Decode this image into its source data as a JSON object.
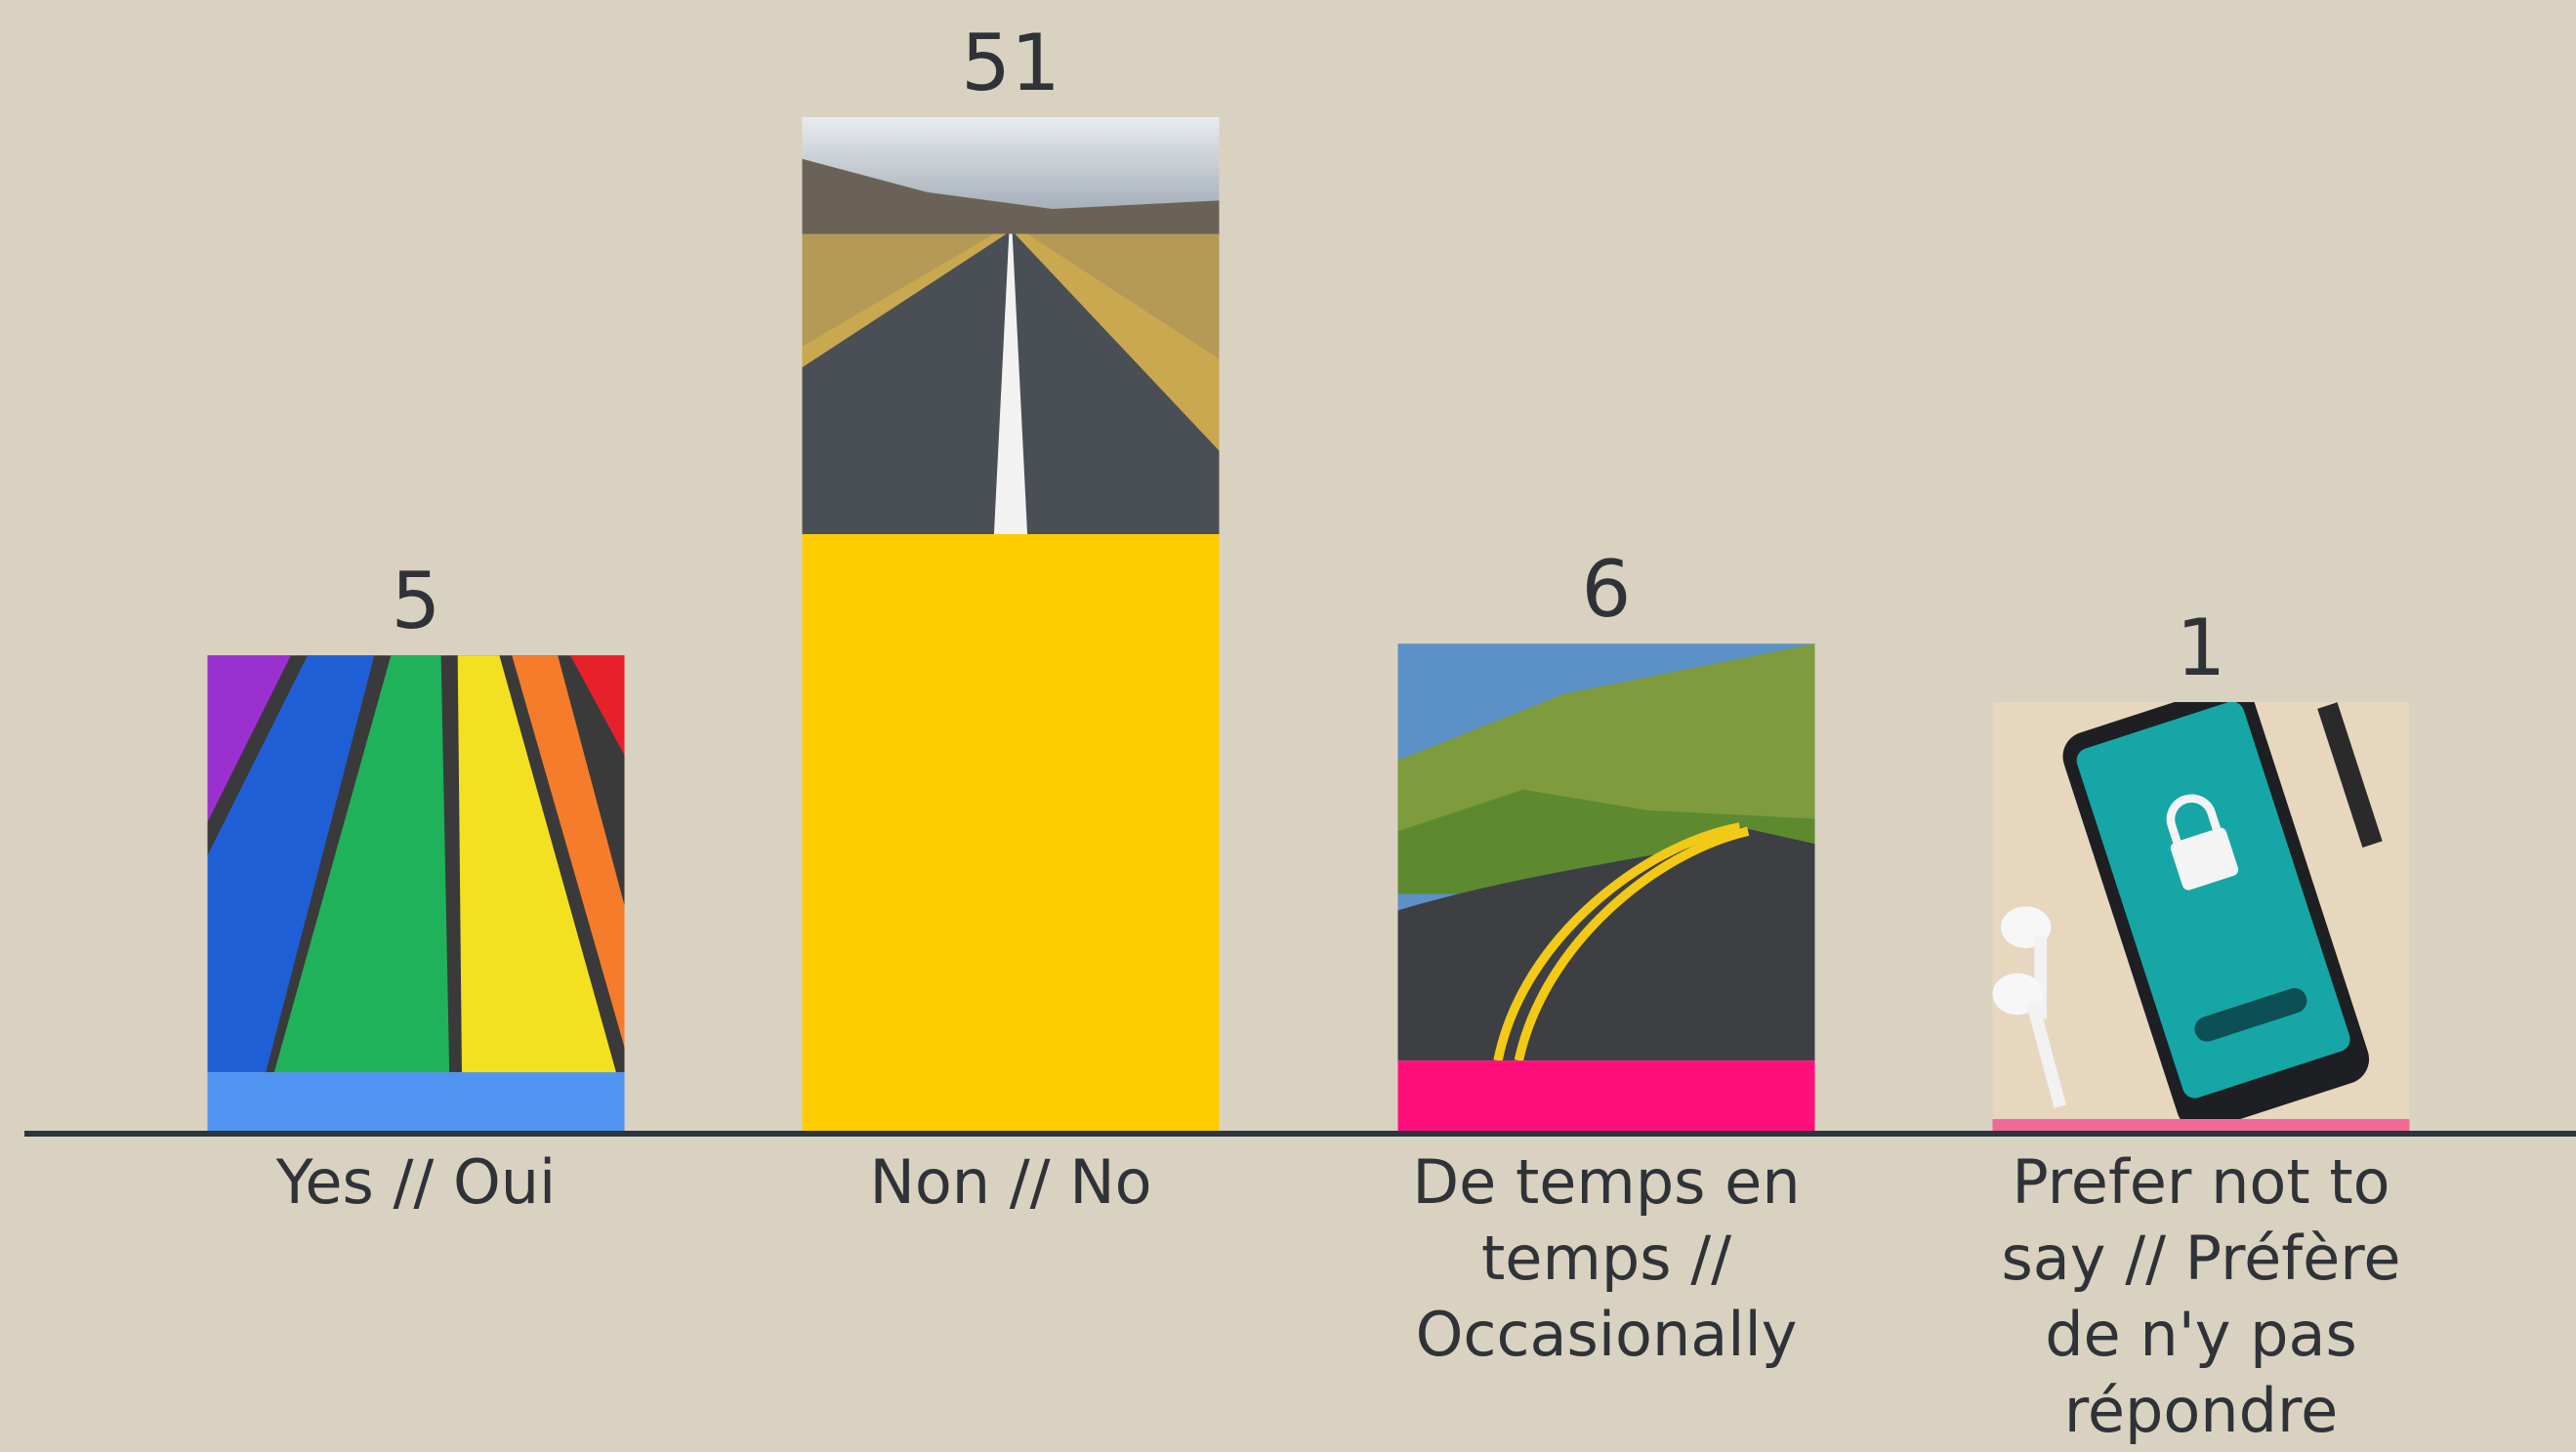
{
  "chart_data": {
    "type": "bar",
    "categories": [
      "Yes // Oui",
      "Non // No",
      "De temps en temps // Occasionally",
      "Prefer not to say // Préfère de n'y pas répondre"
    ],
    "values": [
      5,
      51,
      6,
      1
    ],
    "colors": [
      "#4f94f0",
      "#ffcc00",
      "#ff0f7c",
      "#f06a95"
    ]
  }
}
